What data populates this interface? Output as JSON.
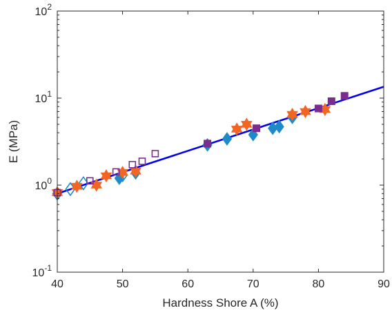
{
  "chart_data": {
    "type": "scatter",
    "title": "",
    "xlabel": "Hardness Shore A (%)",
    "ylabel": "E (MPa)",
    "xlim": [
      40,
      90
    ],
    "ylim": [
      0.1,
      100
    ],
    "yscale": "log",
    "grid": false,
    "legend": "none",
    "x_ticks": [
      {
        "value": 40,
        "label": "40"
      },
      {
        "value": 50,
        "label": "50"
      },
      {
        "value": 60,
        "label": "60"
      },
      {
        "value": 70,
        "label": "70"
      },
      {
        "value": 80,
        "label": "80"
      },
      {
        "value": 90,
        "label": "90"
      }
    ],
    "y_ticks": [
      {
        "value": 0.1,
        "base": "10",
        "exp": "-1"
      },
      {
        "value": 1,
        "base": "10",
        "exp": "0"
      },
      {
        "value": 10,
        "base": "10",
        "exp": "1"
      },
      {
        "value": 100,
        "base": "10",
        "exp": "2"
      }
    ],
    "series": [
      {
        "marker": "diamond-filled",
        "color": "#1f8ac9",
        "points": [
          [
            49.5,
            1.2
          ],
          [
            52,
            1.38
          ],
          [
            63,
            2.9
          ],
          [
            66,
            3.4
          ],
          [
            70,
            3.8
          ],
          [
            73,
            4.5
          ],
          [
            74,
            4.7
          ],
          [
            76,
            6.0
          ]
        ]
      },
      {
        "marker": "diamond-open",
        "color": "#1f8ac9",
        "points": [
          [
            40,
            0.8
          ],
          [
            42,
            0.9
          ],
          [
            44,
            1.05
          ],
          [
            50,
            1.3
          ]
        ]
      },
      {
        "marker": "hexagram-filled",
        "color": "#f26522",
        "points": [
          [
            40,
            0.82
          ],
          [
            43,
            0.97
          ],
          [
            46,
            1.0
          ],
          [
            47.5,
            1.28
          ],
          [
            50,
            1.4
          ],
          [
            52,
            1.45
          ],
          [
            67.5,
            4.4
          ],
          [
            69,
            5.0
          ],
          [
            76,
            6.5
          ],
          [
            78,
            7.0
          ],
          [
            81,
            7.4
          ]
        ]
      },
      {
        "marker": "square-filled",
        "color": "#7b2d8e",
        "points": [
          [
            63,
            3.0
          ],
          [
            70.5,
            4.5
          ],
          [
            80,
            7.6
          ],
          [
            82,
            9.2
          ],
          [
            84,
            10.6
          ]
        ]
      },
      {
        "marker": "square-open",
        "color": "#7b2d8e",
        "points": [
          [
            40,
            0.82
          ],
          [
            45,
            1.12
          ],
          [
            49,
            1.42
          ],
          [
            51.5,
            1.72
          ],
          [
            53,
            1.88
          ],
          [
            55,
            2.3
          ]
        ]
      }
    ],
    "fit_line": {
      "color": "#0000ee",
      "points": [
        [
          40,
          0.8
        ],
        [
          90,
          13.5
        ]
      ]
    }
  }
}
